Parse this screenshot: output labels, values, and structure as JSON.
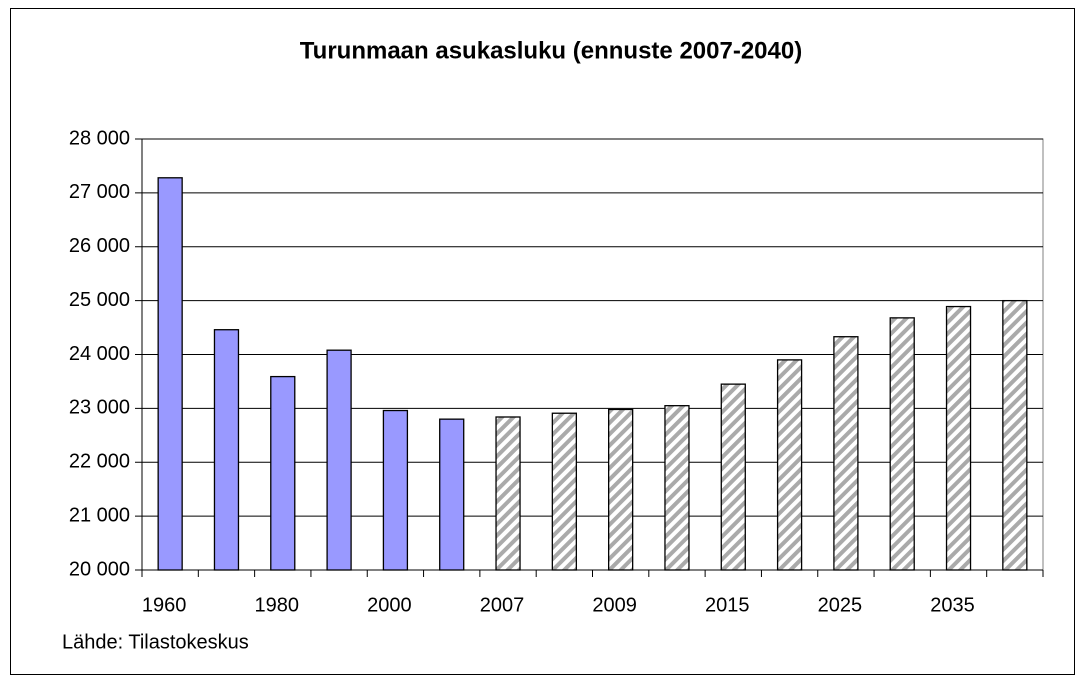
{
  "chart_data": {
    "type": "bar",
    "title": "Turunmaan asukasluku (ennuste 2007-2040)",
    "source": "Lähde: Tilastokeskus",
    "categories": [
      "1960",
      null,
      "1980",
      null,
      "2000",
      null,
      "2007",
      null,
      "2009",
      null,
      "2015",
      null,
      "2025",
      null,
      "2035",
      null
    ],
    "values": [
      27280,
      24460,
      23590,
      24080,
      22960,
      22800,
      22840,
      22910,
      22980,
      23050,
      23450,
      23900,
      24330,
      24680,
      24890,
      25000
    ],
    "bar_styles": [
      "solid",
      "solid",
      "solid",
      "solid",
      "solid",
      "solid",
      "hatched",
      "hatched",
      "hatched",
      "hatched",
      "hatched",
      "hatched",
      "hatched",
      "hatched",
      "hatched",
      "hatched"
    ],
    "color": "#9999ff",
    "hatch_color": "#aaaaaa",
    "ylim": [
      20000,
      28000
    ],
    "yticks": [
      {
        "value": 20000,
        "label": "20 000"
      },
      {
        "value": 21000,
        "label": "21 000"
      },
      {
        "value": 22000,
        "label": "22 000"
      },
      {
        "value": 23000,
        "label": "23 000"
      },
      {
        "value": 24000,
        "label": "24 000"
      },
      {
        "value": 25000,
        "label": "25 000"
      },
      {
        "value": 26000,
        "label": "26 000"
      },
      {
        "value": 27000,
        "label": "27 000"
      },
      {
        "value": 28000,
        "label": "28 000"
      }
    ],
    "grid": true
  }
}
